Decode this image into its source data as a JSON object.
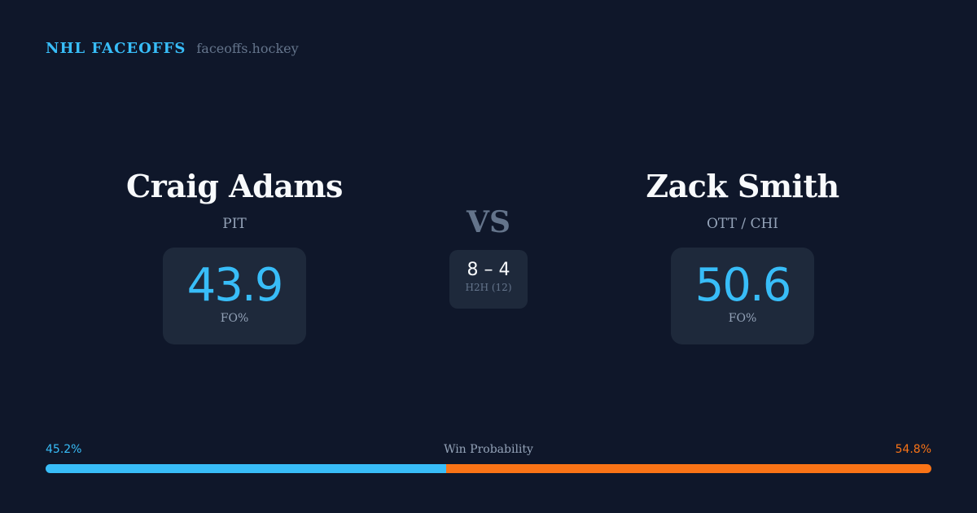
{
  "brand": {
    "name": "NHL FACEOFFS",
    "url": "faceoffs.hockey"
  },
  "player1": {
    "name": "Craig Adams",
    "team": "PIT",
    "fo_pct": "43.9",
    "fo_label": "FO%"
  },
  "player2": {
    "name": "Zack Smith",
    "team": "OTT / CHI",
    "fo_pct": "50.6",
    "fo_label": "FO%"
  },
  "vs": "VS",
  "h2h": {
    "score": "8 – 4",
    "label": "H2H (12)"
  },
  "win_probability": {
    "label": "Win Probability",
    "p1_text": "45.2%",
    "p2_text": "54.8%",
    "p1": 45.2,
    "p2": 54.8
  },
  "colors": {
    "background": "#0f172a",
    "accent": "#38bdf8",
    "p2": "#f97316",
    "card": "#1e293b"
  }
}
